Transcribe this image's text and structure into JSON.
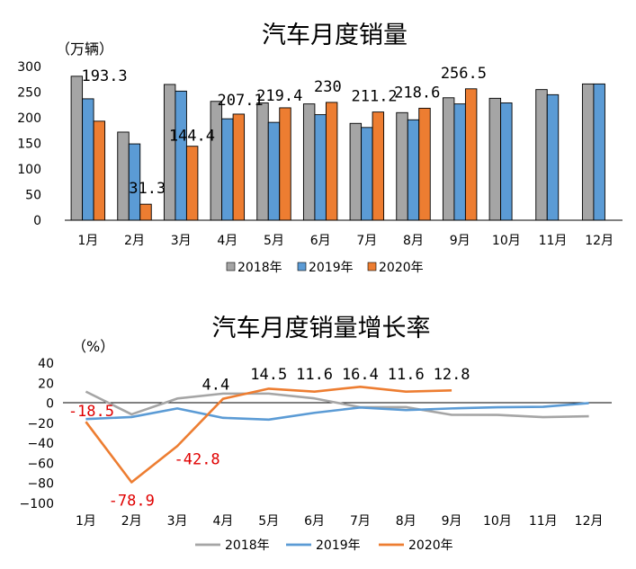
{
  "colors": {
    "s2018": "#a5a5a5",
    "s2019": "#5b9bd5",
    "s2020": "#ed7d31",
    "red_label": "#e00000"
  },
  "chart_data": [
    {
      "type": "bar",
      "title": "汽车月度销量",
      "ylabel": "（万辆）",
      "categories": [
        "1月",
        "2月",
        "3月",
        "4月",
        "5月",
        "6月",
        "7月",
        "8月",
        "9月",
        "10月",
        "11月",
        "12月"
      ],
      "ylim": [
        0,
        300
      ],
      "yticks": [
        "0",
        "50",
        "100",
        "150",
        "200",
        "250",
        "300"
      ],
      "series": [
        {
          "name": "2018年",
          "values": [
            281,
            172,
            265,
            232,
            229,
            227,
            189,
            210,
            239,
            238,
            255,
            266
          ]
        },
        {
          "name": "2019年",
          "values": [
            237,
            149,
            252,
            198,
            191,
            206,
            181,
            196,
            227,
            229,
            245,
            266
          ]
        },
        {
          "name": "2020年",
          "values": [
            193.3,
            31.3,
            144.4,
            207.1,
            219.4,
            230,
            211.2,
            218.6,
            256.5,
            null,
            null,
            null
          ]
        }
      ],
      "data_labels": [
        "193.3",
        "31.3",
        "144.4",
        "207.1",
        "219.4",
        "230",
        "211.2",
        "218.6",
        "256.5"
      ],
      "legend": "bottom",
      "grid": false
    },
    {
      "type": "line",
      "title": "汽车月度销量增长率",
      "ylabel": "（%）",
      "categories": [
        "1月",
        "2月",
        "3月",
        "4月",
        "5月",
        "6月",
        "7月",
        "8月",
        "9月",
        "10月",
        "11月",
        "12月"
      ],
      "ylim": [
        -100,
        40
      ],
      "yticks": [
        "40",
        "20",
        "0",
        "−20",
        "−40",
        "−60",
        "−80",
        "−100"
      ],
      "series": [
        {
          "name": "2018年",
          "values": [
            11.6,
            -11.1,
            4.7,
            9.6,
            9.6,
            4.8,
            -4.0,
            -3.9,
            -11.6,
            -11.7,
            -13.9,
            -13.0
          ]
        },
        {
          "name": "2019年",
          "values": [
            -15.8,
            -13.8,
            -5.2,
            -14.6,
            -16.4,
            -9.6,
            -4.3,
            -6.9,
            -5.2,
            -4.0,
            -3.6,
            0.1
          ]
        },
        {
          "name": "2020年",
          "values": [
            -18.5,
            -78.9,
            -42.8,
            4.4,
            14.5,
            11.6,
            16.4,
            11.6,
            12.8,
            null,
            null,
            null
          ]
        }
      ],
      "data_labels": [
        "-18.5",
        "-78.9",
        "-42.8",
        "4.4",
        "14.5",
        "11.6",
        "16.4",
        "11.6",
        "12.8"
      ],
      "legend": "bottom",
      "grid": false
    }
  ]
}
